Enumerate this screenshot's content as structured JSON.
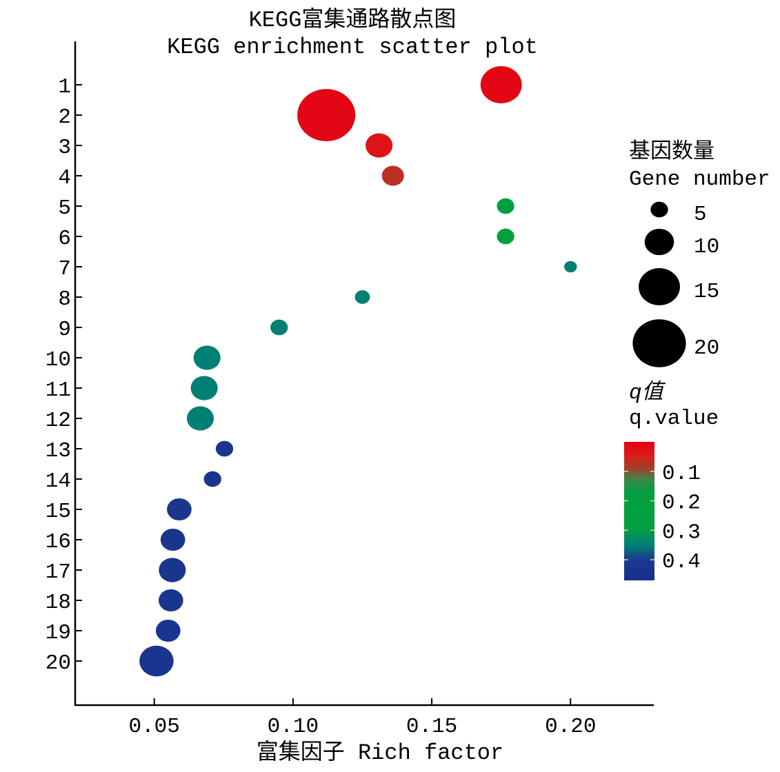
{
  "chart_data": {
    "type": "scatter",
    "title": "KEGG富集通路散点图",
    "subtitle": "KEGG enrichment scatter plot",
    "xlabel": "富集因子 Rich factor",
    "ylabel": "",
    "xlim": [
      0.0215,
      0.23
    ],
    "xticks": [
      0.05,
      0.1,
      0.15,
      0.2
    ],
    "xtick_labels": [
      "0.05",
      "0.10",
      "0.15",
      "0.20"
    ],
    "ylim": [
      0,
      21.8
    ],
    "yticks": [
      1,
      2,
      3,
      4,
      5,
      6,
      7,
      8,
      9,
      10,
      11,
      12,
      13,
      14,
      15,
      16,
      17,
      18,
      19,
      20
    ],
    "ytick_labels": [
      "1",
      "2",
      "3",
      "4",
      "5",
      "6",
      "7",
      "8",
      "9",
      "10",
      "11",
      "12",
      "13",
      "14",
      "15",
      "16",
      "17",
      "18",
      "19",
      "20"
    ],
    "grid": false,
    "points": [
      {
        "pathway": 1,
        "rich_factor": 0.175,
        "gene_number": 15,
        "q_value": 0.01
      },
      {
        "pathway": 2,
        "rich_factor": 0.112,
        "gene_number": 22,
        "q_value": 0.01
      },
      {
        "pathway": 3,
        "rich_factor": 0.131,
        "gene_number": 9,
        "q_value": 0.03
      },
      {
        "pathway": 4,
        "rich_factor": 0.136,
        "gene_number": 7,
        "q_value": 0.07
      },
      {
        "pathway": 5,
        "rich_factor": 0.1766,
        "gene_number": 5,
        "q_value": 0.25
      },
      {
        "pathway": 6,
        "rich_factor": 0.1766,
        "gene_number": 5,
        "q_value": 0.25
      },
      {
        "pathway": 7,
        "rich_factor": 0.2,
        "gene_number": 3,
        "q_value": 0.35
      },
      {
        "pathway": 8,
        "rich_factor": 0.125,
        "gene_number": 4,
        "q_value": 0.35
      },
      {
        "pathway": 9,
        "rich_factor": 0.095,
        "gene_number": 5,
        "q_value": 0.35
      },
      {
        "pathway": 10,
        "rich_factor": 0.069,
        "gene_number": 9,
        "q_value": 0.35
      },
      {
        "pathway": 11,
        "rich_factor": 0.068,
        "gene_number": 9,
        "q_value": 0.35
      },
      {
        "pathway": 12,
        "rich_factor": 0.0666,
        "gene_number": 9,
        "q_value": 0.35
      },
      {
        "pathway": 13,
        "rich_factor": 0.0753,
        "gene_number": 5,
        "q_value": 0.43
      },
      {
        "pathway": 14,
        "rich_factor": 0.071,
        "gene_number": 5,
        "q_value": 0.43
      },
      {
        "pathway": 15,
        "rich_factor": 0.059,
        "gene_number": 8,
        "q_value": 0.43
      },
      {
        "pathway": 16,
        "rich_factor": 0.0567,
        "gene_number": 8,
        "q_value": 0.43
      },
      {
        "pathway": 17,
        "rich_factor": 0.0565,
        "gene_number": 9,
        "q_value": 0.43
      },
      {
        "pathway": 18,
        "rich_factor": 0.056,
        "gene_number": 8,
        "q_value": 0.43
      },
      {
        "pathway": 19,
        "rich_factor": 0.055,
        "gene_number": 8,
        "q_value": 0.43
      },
      {
        "pathway": 20,
        "rich_factor": 0.0508,
        "gene_number": 12,
        "q_value": 0.43
      }
    ],
    "size_legend": {
      "title": "基因数量",
      "subtitle": "Gene number",
      "values": [
        5,
        10,
        15,
        20
      ],
      "labels": [
        "5",
        "10",
        "15",
        "20"
      ],
      "placement": "right"
    },
    "color_legend": {
      "title": "q值",
      "subtitle": "q.value",
      "range": [
        0,
        0.47
      ],
      "ticks": [
        0.1,
        0.2,
        0.3,
        0.4
      ],
      "tick_labels": [
        "0.1",
        "0.2",
        "0.3",
        "0.4"
      ],
      "stops": [
        {
          "q": 0.0,
          "color": "#e60012"
        },
        {
          "q": 0.05,
          "color": "#d8201a"
        },
        {
          "q": 0.09,
          "color": "#a0402e"
        },
        {
          "q": 0.13,
          "color": "#3a8a48"
        },
        {
          "q": 0.17,
          "color": "#00a040"
        },
        {
          "q": 0.29,
          "color": "#00a040"
        },
        {
          "q": 0.35,
          "color": "#008075"
        },
        {
          "q": 0.4,
          "color": "#1a3a90"
        },
        {
          "q": 0.47,
          "color": "#1a2e8a"
        }
      ],
      "placement": "right"
    },
    "marker_color_legend_size": "#000000"
  }
}
